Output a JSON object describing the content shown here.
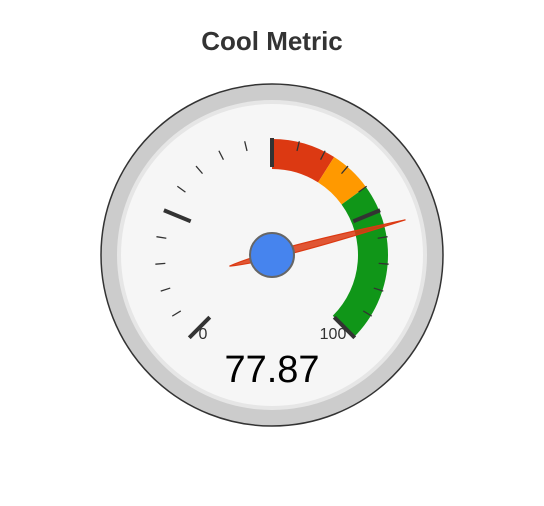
{
  "chart_data": {
    "type": "gauge",
    "title": "Cool Metric",
    "value": 77.87,
    "value_label": "77.87",
    "min": 0,
    "max": 100,
    "min_label": "0",
    "max_label": "100",
    "major_ticks": 4,
    "minor_ticks_per_major": 4,
    "bands": [
      {
        "from": 50,
        "to": 62,
        "color": "#dc3912"
      },
      {
        "from": 62,
        "to": 70,
        "color": "#ff9900"
      },
      {
        "from": 70,
        "to": 100,
        "color": "#109618"
      }
    ],
    "colors": {
      "outer_ring": "#cccccc",
      "face": "#f6f6f6",
      "needle": "#dc3912",
      "hub": "#4684ee",
      "tick": "#333333"
    }
  }
}
